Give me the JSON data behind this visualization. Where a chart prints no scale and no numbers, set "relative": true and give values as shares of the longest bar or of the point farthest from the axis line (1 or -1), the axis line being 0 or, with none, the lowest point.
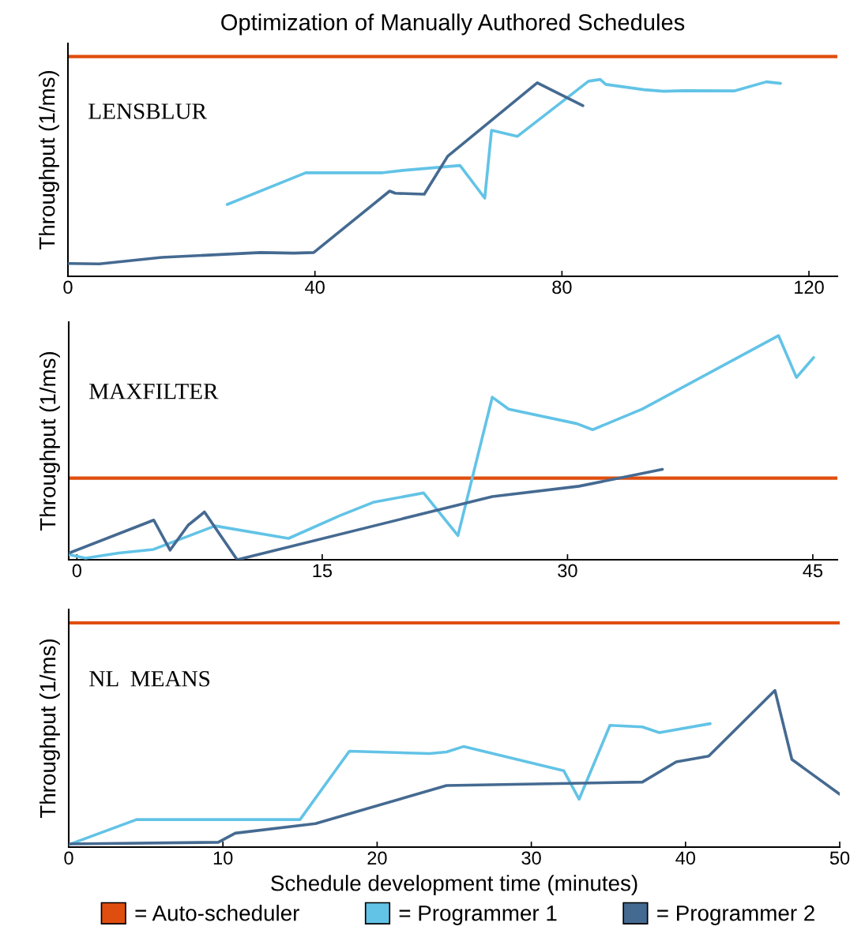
{
  "chart_data": [
    {
      "type": "line",
      "title": "Optimization of Manually Authored Schedules",
      "ylabel": "Throughput (1/ms)",
      "relative": true,
      "annotations": [
        "LENSBLUR"
      ],
      "xlim": [
        0,
        124.6
      ],
      "xticks": [
        0,
        40,
        80,
        120
      ],
      "line_style": "solid",
      "marker": "none",
      "grid": false,
      "legend": false,
      "ref_lines": [
        {
          "axis": "y",
          "value": 1.116,
          "color": "#e04e0f"
        }
      ],
      "series": [
        {
          "color": "#62c3e6",
          "x": [
            25.8,
            38.5,
            51.0,
            54.2,
            63.5,
            67.5,
            68.6,
            72.8,
            82.0,
            84.3,
            86.2,
            87.1,
            93.3,
            96.5,
            99.7,
            108.0,
            113.1,
            115.4
          ],
          "values": [
            0.365,
            0.526,
            0.526,
            0.538,
            0.563,
            0.397,
            0.742,
            0.711,
            0.935,
            0.991,
            1.0,
            0.975,
            0.948,
            0.94,
            0.943,
            0.942,
            0.988,
            0.98
          ]
        },
        {
          "color": "#456a91",
          "x": [
            0,
            5.1,
            15.2,
            31.2,
            36.6,
            39.8,
            52.1,
            53.0,
            57.7,
            61.5,
            76.0,
            83.4
          ],
          "values": [
            0.065,
            0.063,
            0.096,
            0.121,
            0.118,
            0.121,
            0.433,
            0.422,
            0.417,
            0.61,
            0.983,
            0.867
          ]
        }
      ]
    },
    {
      "type": "line",
      "ylabel": "Throughput (1/ms)",
      "relative": true,
      "annotations": [
        "MAXFILTER"
      ],
      "xlim": [
        -0.5,
        46.5
      ],
      "xticks": [
        0,
        15,
        30,
        45
      ],
      "line_style": "solid",
      "marker": "none",
      "grid": false,
      "legend": false,
      "ref_lines": [
        {
          "axis": "y",
          "value": 0.364,
          "color": "#e04e0f"
        }
      ],
      "series": [
        {
          "color": "#62c3e6",
          "x": [
            -0.48,
            0.53,
            2.56,
            4.68,
            8.45,
            12.94,
            16.08,
            18.11,
            21.2,
            23.3,
            25.4,
            26.4,
            30.57,
            31.53,
            34.57,
            42.9,
            44.0,
            45.05
          ],
          "values": [
            0.023,
            0.007,
            0.03,
            0.046,
            0.151,
            0.095,
            0.197,
            0.256,
            0.298,
            0.108,
            0.725,
            0.672,
            0.607,
            0.58,
            0.672,
            1.0,
            0.813,
            0.902
          ]
        },
        {
          "color": "#456a91",
          "x": [
            -0.48,
            4.7,
            5.7,
            6.8,
            7.8,
            9.8,
            25.4,
            30.7,
            35.8
          ],
          "values": [
            0.03,
            0.177,
            0.043,
            0.154,
            0.213,
            0.0,
            0.282,
            0.328,
            0.403
          ]
        }
      ]
    },
    {
      "type": "line",
      "ylabel": "Throughput (1/ms)",
      "xlabel": "Schedule development time (minutes)",
      "relative": true,
      "annotations": [
        "NL  MEANS"
      ],
      "xlim": [
        0,
        50
      ],
      "xticks": [
        0,
        10,
        20,
        30,
        40,
        50
      ],
      "line_style": "solid",
      "marker": "none",
      "grid": false,
      "legend": "bottom",
      "ref_lines": [
        {
          "axis": "y",
          "value": 1.431,
          "color": "#e04e0f",
          "label": "= Auto-scheduler"
        }
      ],
      "series": [
        {
          "name": "= Programmer 1",
          "color": "#62c3e6",
          "x": [
            0,
            4.4,
            15.0,
            18.2,
            23.4,
            24.5,
            25.6,
            32.1,
            33.1,
            35.1,
            37.2,
            38.3,
            41.6
          ],
          "values": [
            0.016,
            0.176,
            0.176,
            0.612,
            0.597,
            0.607,
            0.642,
            0.488,
            0.306,
            0.777,
            0.767,
            0.731,
            0.788
          ]
        },
        {
          "name": "= Programmer 2",
          "color": "#456a91",
          "x": [
            0,
            9.7,
            10.8,
            16.0,
            24.5,
            37.2,
            39.4,
            41.5,
            45.8,
            46.9,
            50.0
          ],
          "values": [
            0.02,
            0.031,
            0.089,
            0.15,
            0.393,
            0.415,
            0.544,
            0.581,
            1.0,
            0.559,
            0.338
          ]
        }
      ]
    }
  ]
}
